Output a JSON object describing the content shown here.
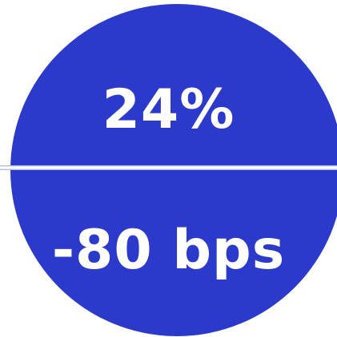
{
  "badge": {
    "top_value": "24%",
    "bottom_value": "-80 bps"
  },
  "colors": {
    "circle_fill": "#2c3acb",
    "text": "#ffffff",
    "divider": "#ffffff",
    "background": "#ffffff"
  }
}
